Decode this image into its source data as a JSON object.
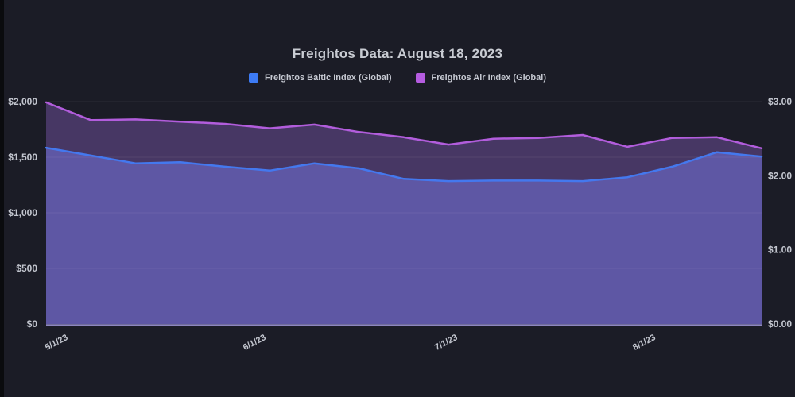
{
  "page": {
    "background": "#1b1c26",
    "left_strip_color": "#0a0b0e",
    "text_color": "#c9ccd3",
    "tick_text_color": "#c3c6cf",
    "grid_color": "#ffffff",
    "baseline_color": "#8d86c0"
  },
  "header": {
    "title": "Freightos Data: August 18, 2023"
  },
  "legend": [
    {
      "label": "Freightos Baltic Index (Global)",
      "color": "#3d7bf5"
    },
    {
      "label": "Freightos Air Index (Global)",
      "color": "#b55ce0"
    }
  ],
  "chart_data": {
    "type": "area",
    "title": "Freightos Data: August 18, 2023",
    "grid": true,
    "legend_position": "top",
    "x": [
      "5/1/23",
      "5/8/23",
      "5/15/23",
      "5/22/23",
      "5/29/23",
      "6/5/23",
      "6/12/23",
      "6/19/23",
      "6/26/23",
      "7/3/23",
      "7/10/23",
      "7/17/23",
      "7/24/23",
      "7/31/23",
      "8/7/23",
      "8/14/23",
      "8/18/23"
    ],
    "series": [
      {
        "name": "Freightos Baltic Index (Global)",
        "axis": "left",
        "line_color": "#4478ee",
        "fill_color": "#5e57a4",
        "values": [
          1585,
          1515,
          1445,
          1455,
          1415,
          1380,
          1445,
          1400,
          1305,
          1285,
          1290,
          1290,
          1285,
          1320,
          1415,
          1545,
          1505
        ]
      },
      {
        "name": "Freightos Air Index (Global)",
        "axis": "right",
        "line_color": "#b25ddc",
        "fill_color": "#473764",
        "values": [
          2.99,
          2.75,
          2.76,
          2.73,
          2.7,
          2.64,
          2.69,
          2.59,
          2.52,
          2.42,
          2.5,
          2.51,
          2.55,
          2.39,
          2.51,
          2.52,
          2.37
        ]
      }
    ],
    "y_left": {
      "min": 0,
      "max": 2000,
      "ticks": [
        {
          "label": "$0",
          "value": 0
        },
        {
          "label": "$500",
          "value": 500
        },
        {
          "label": "$1,000",
          "value": 1000
        },
        {
          "label": "$1,500",
          "value": 1500
        },
        {
          "label": "$2,000",
          "value": 2000
        }
      ]
    },
    "y_right": {
      "min": 0,
      "max": 3,
      "ticks": [
        {
          "label": "$0.00",
          "value": 0
        },
        {
          "label": "$1.00",
          "value": 1
        },
        {
          "label": "$2.00",
          "value": 2
        },
        {
          "label": "$3.00",
          "value": 3
        }
      ]
    },
    "x_ticks": [
      {
        "label": "5/1/23",
        "pos": 0
      },
      {
        "label": "6/1/23",
        "pos": 4.4286
      },
      {
        "label": "7/1/23",
        "pos": 8.7143
      },
      {
        "label": "8/1/23",
        "pos": 13.1429
      }
    ]
  }
}
